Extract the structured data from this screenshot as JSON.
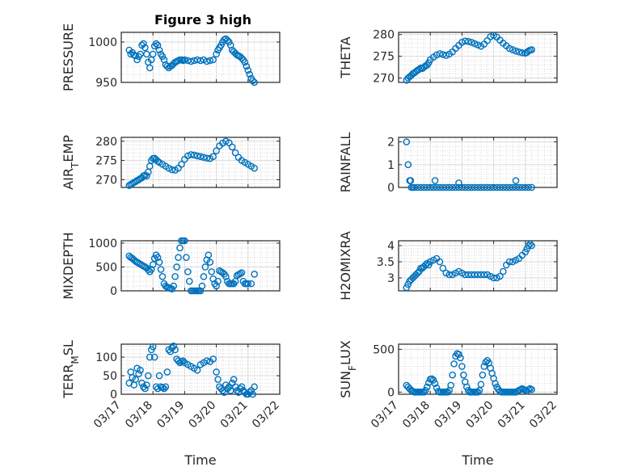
{
  "figure_title": "Figure 3 high",
  "colors": {
    "marker": "#0072BD",
    "axis": "#262626",
    "grid": "#d9d9d9",
    "background": "#ffffff"
  },
  "chart_data": [
    {
      "type": "scatter",
      "title": "Figure 3 high",
      "ylabel": "PRESSURE",
      "ylim": [
        950,
        1012
      ],
      "yticks": [
        950,
        1000
      ],
      "xlim": [
        "03/17",
        "03/22"
      ],
      "xticks": [
        "03/17",
        "03/18",
        "03/19",
        "03/20",
        "03/21",
        "03/22"
      ],
      "grid": "minor",
      "x": [
        17.25,
        17.3,
        17.35,
        17.4,
        17.45,
        17.5,
        17.55,
        17.6,
        17.65,
        17.7,
        17.75,
        17.8,
        17.85,
        17.9,
        17.95,
        18.0,
        18.05,
        18.1,
        18.15,
        18.2,
        18.25,
        18.3,
        18.35,
        18.4,
        18.45,
        18.5,
        18.55,
        18.6,
        18.65,
        18.7,
        18.75,
        18.8,
        18.85,
        18.9,
        18.95,
        19.0,
        19.1,
        19.2,
        19.3,
        19.4,
        19.5,
        19.6,
        19.7,
        19.8,
        19.9,
        20.0,
        20.05,
        20.1,
        20.15,
        20.2,
        20.25,
        20.3,
        20.35,
        20.4,
        20.45,
        20.5,
        20.55,
        20.6,
        20.65,
        20.7,
        20.75,
        20.8,
        20.85,
        20.9,
        20.95,
        21.0,
        21.05,
        21.1,
        21.15,
        21.2
      ],
      "y": [
        990,
        985,
        987,
        984,
        983,
        978,
        982,
        985,
        996,
        998,
        993,
        985,
        975,
        968,
        978,
        985,
        995,
        998,
        996,
        990,
        985,
        982,
        978,
        972,
        970,
        968,
        970,
        971,
        973,
        975,
        976,
        977,
        978,
        978,
        977,
        978,
        977,
        976,
        977,
        978,
        977,
        978,
        976,
        977,
        978,
        985,
        990,
        993,
        996,
        1000,
        1003,
        1004,
        1002,
        1000,
        996,
        990,
        988,
        986,
        984,
        983,
        982,
        980,
        978,
        975,
        970,
        965,
        960,
        955,
        952,
        950
      ]
    },
    {
      "type": "scatter",
      "ylabel": "THETA",
      "ylim": [
        269,
        280.5
      ],
      "yticks": [
        270,
        275,
        280
      ],
      "xlim": [
        "03/17",
        "03/22"
      ],
      "xticks": [
        "03/17",
        "03/18",
        "03/19",
        "03/20",
        "03/21",
        "03/22"
      ],
      "grid": "minor",
      "x": [
        17.25,
        17.3,
        17.35,
        17.4,
        17.45,
        17.5,
        17.55,
        17.6,
        17.65,
        17.7,
        17.75,
        17.8,
        17.85,
        17.9,
        17.95,
        18.0,
        18.1,
        18.2,
        18.3,
        18.4,
        18.5,
        18.6,
        18.7,
        18.8,
        18.9,
        19.0,
        19.1,
        19.2,
        19.3,
        19.4,
        19.5,
        19.6,
        19.7,
        19.8,
        19.9,
        20.0,
        20.1,
        20.2,
        20.3,
        20.4,
        20.5,
        20.6,
        20.7,
        20.8,
        20.9,
        21.0,
        21.05,
        21.1,
        21.15,
        21.2
      ],
      "y": [
        269.5,
        270,
        270.3,
        270.6,
        271,
        271.2,
        271.5,
        271.8,
        272,
        272.3,
        272.2,
        272.5,
        272.8,
        273,
        273.5,
        274.2,
        274.8,
        275.3,
        275.6,
        275.4,
        275.2,
        275.5,
        276,
        276.8,
        277.5,
        278.2,
        278.5,
        278.4,
        278.2,
        277.9,
        277.6,
        277.3,
        277.8,
        278.6,
        279.5,
        279.8,
        279.4,
        278.7,
        278,
        277.4,
        276.8,
        276.5,
        276.2,
        276,
        275.8,
        275.7,
        275.9,
        276.2,
        276.4,
        276.5
      ]
    },
    {
      "type": "scatter",
      "ylabel": "AIR_TEMP",
      "ylim": [
        268,
        281
      ],
      "yticks": [
        270,
        275,
        280
      ],
      "xlim": [
        "03/17",
        "03/22"
      ],
      "xticks": [
        "03/17",
        "03/18",
        "03/19",
        "03/20",
        "03/21",
        "03/22"
      ],
      "grid": "minor",
      "x": [
        17.25,
        17.3,
        17.35,
        17.4,
        17.45,
        17.5,
        17.55,
        17.6,
        17.65,
        17.7,
        17.75,
        17.8,
        17.85,
        17.9,
        17.95,
        18.0,
        18.05,
        18.1,
        18.15,
        18.2,
        18.3,
        18.4,
        18.5,
        18.6,
        18.7,
        18.8,
        18.9,
        19.0,
        19.1,
        19.2,
        19.3,
        19.4,
        19.5,
        19.6,
        19.7,
        19.8,
        19.9,
        20.0,
        20.1,
        20.2,
        20.3,
        20.4,
        20.5,
        20.6,
        20.7,
        20.8,
        20.9,
        21.0,
        21.1,
        21.2
      ],
      "y": [
        268.5,
        268.8,
        269,
        269.3,
        269.5,
        269.8,
        270,
        270.3,
        270.5,
        271,
        271.2,
        271,
        272,
        273.5,
        275,
        275.5,
        275.6,
        275.2,
        274.8,
        274.5,
        274,
        273.5,
        273,
        272.6,
        272.5,
        273,
        274,
        275.3,
        276.2,
        276.5,
        276.4,
        276.2,
        276,
        275.8,
        275.6,
        275.5,
        276,
        277.5,
        278.8,
        279.5,
        280,
        279.6,
        278.5,
        277,
        275.8,
        275,
        274.5,
        274,
        273.5,
        273
      ]
    },
    {
      "type": "scatter",
      "ylabel": "RAINFALL",
      "ylim": [
        0,
        2.2
      ],
      "yticks": [
        0,
        1,
        2
      ],
      "xlim": [
        "03/17",
        "03/22"
      ],
      "xticks": [
        "03/17",
        "03/18",
        "03/19",
        "03/20",
        "03/21",
        "03/22"
      ],
      "grid": "minor",
      "x": [
        17.25,
        17.3,
        17.35,
        17.38,
        17.4,
        17.45,
        17.5,
        17.6,
        17.7,
        17.8,
        17.9,
        18.0,
        18.1,
        18.2,
        18.3,
        18.4,
        18.5,
        18.6,
        18.7,
        18.8,
        18.9,
        19.0,
        19.1,
        19.2,
        19.3,
        19.4,
        19.5,
        19.6,
        19.7,
        19.8,
        19.9,
        20.0,
        20.1,
        20.2,
        20.3,
        20.4,
        20.5,
        20.6,
        20.7,
        20.8,
        20.9,
        21.0,
        21.1,
        21.2,
        18.15,
        18.9,
        20.7
      ],
      "y": [
        2,
        1,
        0.3,
        0.3,
        0,
        0,
        0,
        0,
        0,
        0,
        0,
        0,
        0,
        0,
        0,
        0,
        0,
        0,
        0,
        0,
        0,
        0,
        0,
        0,
        0,
        0,
        0,
        0,
        0,
        0,
        0,
        0,
        0,
        0,
        0,
        0,
        0,
        0,
        0,
        0,
        0,
        0,
        0,
        0,
        0.3,
        0.2,
        0.3
      ]
    },
    {
      "type": "scatter",
      "ylabel": "MIXDEPTH",
      "ylim": [
        0,
        1050
      ],
      "yticks": [
        0,
        500,
        1000
      ],
      "xlim": [
        "03/17",
        "03/22"
      ],
      "xticks": [
        "03/17",
        "03/18",
        "03/19",
        "03/20",
        "03/21",
        "03/22"
      ],
      "grid": "minor",
      "x": [
        17.25,
        17.3,
        17.35,
        17.4,
        17.45,
        17.5,
        17.55,
        17.6,
        17.65,
        17.7,
        17.75,
        17.8,
        17.85,
        17.9,
        17.95,
        18.0,
        18.05,
        18.1,
        18.15,
        18.2,
        18.25,
        18.3,
        18.35,
        18.4,
        18.45,
        18.5,
        18.55,
        18.6,
        18.65,
        18.7,
        18.75,
        18.8,
        18.85,
        18.9,
        18.95,
        19.0,
        19.05,
        19.1,
        19.15,
        19.2,
        19.25,
        19.3,
        19.35,
        19.4,
        19.45,
        19.5,
        19.55,
        19.6,
        19.65,
        19.7,
        19.75,
        19.8,
        19.85,
        19.9,
        19.95,
        20.0,
        20.05,
        20.1,
        20.15,
        20.2,
        20.25,
        20.3,
        20.35,
        20.4,
        20.45,
        20.5,
        20.55,
        20.6,
        20.65,
        20.7,
        20.75,
        20.8,
        20.85,
        20.9,
        20.95,
        21.0,
        21.1,
        21.2
      ],
      "y": [
        730,
        700,
        680,
        650,
        620,
        600,
        580,
        560,
        540,
        520,
        500,
        480,
        440,
        400,
        450,
        550,
        680,
        750,
        700,
        600,
        450,
        300,
        150,
        100,
        80,
        60,
        50,
        40,
        100,
        300,
        500,
        700,
        900,
        1050,
        1050,
        1050,
        700,
        400,
        200,
        0,
        0,
        0,
        0,
        0,
        0,
        0,
        100,
        300,
        500,
        650,
        750,
        600,
        400,
        250,
        150,
        100,
        200,
        420,
        400,
        380,
        350,
        300,
        200,
        150,
        150,
        150,
        150,
        200,
        320,
        340,
        360,
        380,
        200,
        150,
        150,
        150,
        150,
        350
      ]
    },
    {
      "type": "scatter",
      "ylabel": "H2OMIXRA",
      "ylim": [
        2.6,
        4.15
      ],
      "yticks": [
        3,
        3.5,
        4
      ],
      "xlim": [
        "03/17",
        "03/22"
      ],
      "xticks": [
        "03/17",
        "03/18",
        "03/19",
        "03/20",
        "03/21",
        "03/22"
      ],
      "grid": "minor",
      "x": [
        17.25,
        17.3,
        17.35,
        17.4,
        17.45,
        17.5,
        17.55,
        17.6,
        17.65,
        17.7,
        17.75,
        17.8,
        17.85,
        17.9,
        17.95,
        18.0,
        18.1,
        18.2,
        18.3,
        18.4,
        18.5,
        18.6,
        18.7,
        18.8,
        18.9,
        19.0,
        19.1,
        19.2,
        19.3,
        19.4,
        19.5,
        19.6,
        19.7,
        19.8,
        19.9,
        20.0,
        20.1,
        20.2,
        20.3,
        20.4,
        20.5,
        20.6,
        20.7,
        20.8,
        20.9,
        21.0,
        21.05,
        21.1,
        21.15,
        21.2
      ],
      "y": [
        2.7,
        2.8,
        2.9,
        2.95,
        3.0,
        3.05,
        3.1,
        3.15,
        3.2,
        3.3,
        3.3,
        3.35,
        3.4,
        3.45,
        3.4,
        3.5,
        3.55,
        3.6,
        3.5,
        3.3,
        3.15,
        3.1,
        3.1,
        3.15,
        3.2,
        3.15,
        3.1,
        3.1,
        3.1,
        3.1,
        3.1,
        3.1,
        3.1,
        3.1,
        3.05,
        3.0,
        3.0,
        3.05,
        3.2,
        3.4,
        3.5,
        3.5,
        3.55,
        3.6,
        3.7,
        3.8,
        3.9,
        4.0,
        4.05,
        4.0
      ]
    },
    {
      "type": "scatter",
      "ylabel": "TERR_MSL",
      "ylim": [
        0,
        135
      ],
      "yticks": [
        0,
        50,
        100
      ],
      "xlim": [
        "03/17",
        "03/22"
      ],
      "xticks": [
        "03/17",
        "03/18",
        "03/19",
        "03/20",
        "03/21",
        "03/22"
      ],
      "grid": "minor",
      "x": [
        17.25,
        17.3,
        17.35,
        17.4,
        17.45,
        17.5,
        17.55,
        17.6,
        17.65,
        17.7,
        17.75,
        17.8,
        17.85,
        17.9,
        17.95,
        18.0,
        18.05,
        18.1,
        18.15,
        18.2,
        18.25,
        18.3,
        18.35,
        18.4,
        18.45,
        18.5,
        18.55,
        18.6,
        18.65,
        18.7,
        18.75,
        18.8,
        18.85,
        18.9,
        18.95,
        19.0,
        19.1,
        19.2,
        19.3,
        19.4,
        19.5,
        19.6,
        19.7,
        19.8,
        19.9,
        20.0,
        20.05,
        20.1,
        20.15,
        20.2,
        20.25,
        20.3,
        20.35,
        20.4,
        20.45,
        20.5,
        20.55,
        20.6,
        20.65,
        20.7,
        20.75,
        20.8,
        20.85,
        20.9,
        20.95,
        21.0,
        21.05,
        21.1,
        21.15,
        21.2
      ],
      "y": [
        30,
        60,
        45,
        25,
        40,
        70,
        55,
        65,
        30,
        20,
        15,
        25,
        50,
        100,
        120,
        128,
        100,
        20,
        15,
        50,
        20,
        18,
        15,
        20,
        60,
        120,
        115,
        125,
        130,
        120,
        95,
        90,
        85,
        88,
        90,
        85,
        80,
        75,
        70,
        65,
        80,
        85,
        90,
        88,
        95,
        60,
        40,
        20,
        15,
        10,
        5,
        25,
        15,
        20,
        10,
        30,
        40,
        20,
        10,
        5,
        15,
        20,
        10,
        5,
        0,
        0,
        5,
        10,
        0,
        20
      ]
    },
    {
      "type": "scatter",
      "ylabel": "SUN_FLUX",
      "ylim": [
        -25,
        560
      ],
      "yticks": [
        0,
        500
      ],
      "xlim": [
        "03/17",
        "03/22"
      ],
      "xticks": [
        "03/17",
        "03/18",
        "03/19",
        "03/20",
        "03/21",
        "03/22"
      ],
      "xlabel": "Time",
      "grid": "minor",
      "x": [
        17.25,
        17.3,
        17.35,
        17.4,
        17.45,
        17.5,
        17.55,
        17.6,
        17.65,
        17.7,
        17.75,
        17.8,
        17.85,
        17.9,
        17.95,
        18.0,
        18.05,
        18.1,
        18.15,
        18.2,
        18.25,
        18.3,
        18.35,
        18.4,
        18.45,
        18.5,
        18.55,
        18.6,
        18.65,
        18.7,
        18.75,
        18.8,
        18.85,
        18.9,
        18.95,
        19.0,
        19.05,
        19.1,
        19.15,
        19.2,
        19.25,
        19.3,
        19.35,
        19.4,
        19.45,
        19.5,
        19.55,
        19.6,
        19.65,
        19.7,
        19.75,
        19.8,
        19.85,
        19.9,
        19.95,
        20.0,
        20.05,
        20.1,
        20.15,
        20.2,
        20.25,
        20.3,
        20.35,
        20.4,
        20.45,
        20.5,
        20.55,
        20.6,
        20.65,
        20.7,
        20.75,
        20.8,
        20.85,
        20.9,
        20.95,
        21.0,
        21.05,
        21.1,
        21.15,
        21.2
      ],
      "y": [
        80,
        60,
        40,
        20,
        10,
        0,
        0,
        0,
        0,
        0,
        0,
        0,
        20,
        60,
        110,
        150,
        155,
        140,
        100,
        50,
        10,
        0,
        0,
        0,
        0,
        0,
        0,
        20,
        80,
        200,
        330,
        420,
        450,
        440,
        400,
        300,
        200,
        120,
        60,
        20,
        0,
        0,
        0,
        0,
        0,
        0,
        20,
        90,
        200,
        300,
        350,
        370,
        340,
        280,
        220,
        160,
        100,
        60,
        30,
        10,
        0,
        0,
        0,
        0,
        0,
        0,
        0,
        0,
        0,
        0,
        10,
        20,
        30,
        40,
        30,
        20,
        10,
        30,
        40,
        30
      ]
    }
  ]
}
